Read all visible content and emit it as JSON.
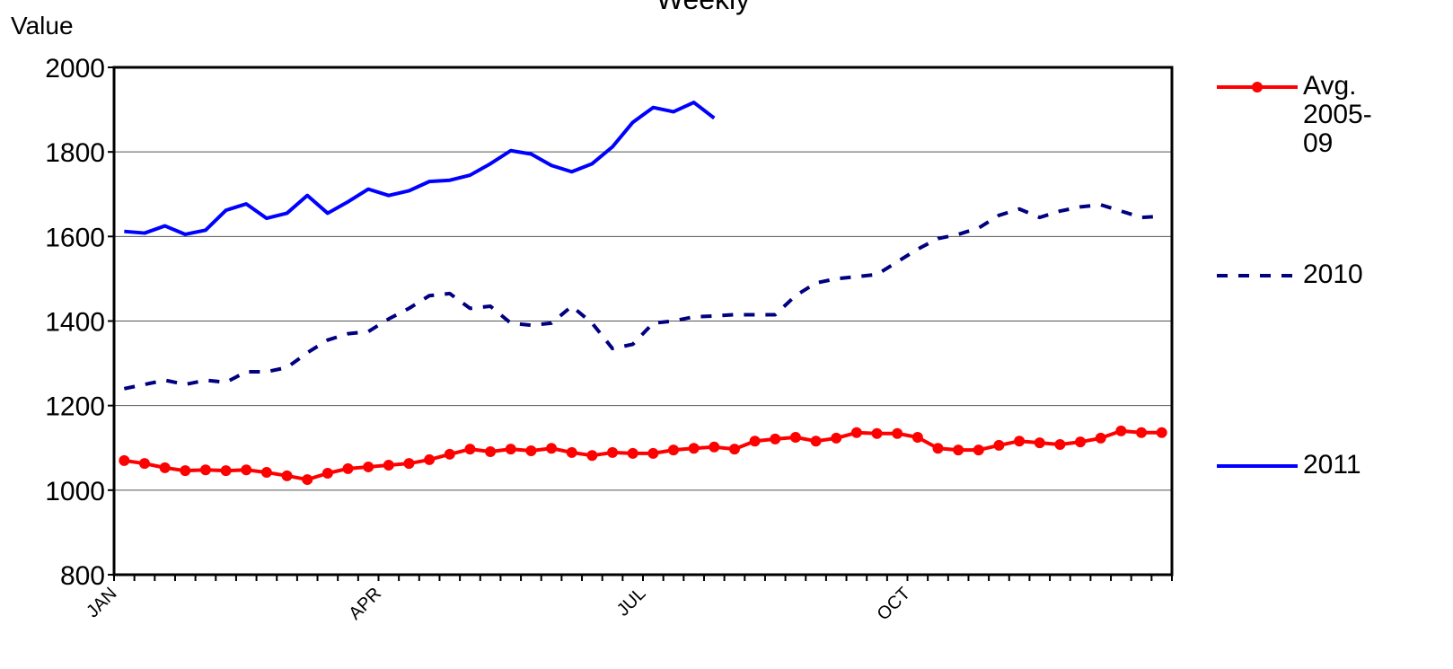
{
  "chart_data": {
    "type": "line",
    "title": "Weekly",
    "y_label": "Value",
    "categories": [
      "JAN",
      null,
      null,
      null,
      null,
      null,
      null,
      null,
      null,
      null,
      null,
      null,
      null,
      "APR",
      null,
      null,
      null,
      null,
      null,
      null,
      null,
      null,
      null,
      null,
      null,
      null,
      "JUL",
      null,
      null,
      null,
      null,
      null,
      null,
      null,
      null,
      null,
      null,
      null,
      null,
      "OCT",
      null,
      null,
      null,
      null,
      null,
      null,
      null,
      null,
      null,
      null,
      null,
      null
    ],
    "series": [
      {
        "name": "Avg. 2005-09",
        "color": "#ff0000",
        "marker": "circle",
        "dash": false,
        "values": [
          1070,
          1063,
          1053,
          1046,
          1048,
          1046,
          1048,
          1042,
          1034,
          1025,
          1040,
          1051,
          1055,
          1059,
          1063,
          1072,
          1085,
          1097,
          1091,
          1097,
          1093,
          1099,
          1089,
          1082,
          1089,
          1087,
          1087,
          1095,
          1099,
          1102,
          1097,
          1116,
          1121,
          1125,
          1116,
          1123,
          1136,
          1134,
          1134,
          1125,
          1099,
          1095,
          1095,
          1106,
          1116,
          1112,
          1108,
          1114,
          1123,
          1140,
          1136,
          1136
        ]
      },
      {
        "name": "2010",
        "color": "#000080",
        "marker": "none",
        "dash": true,
        "values": [
          1240,
          1250,
          1260,
          1250,
          1260,
          1255,
          1280,
          1280,
          1290,
          1325,
          1355,
          1370,
          1375,
          1405,
          1430,
          1460,
          1465,
          1430,
          1435,
          1395,
          1390,
          1395,
          1435,
          1395,
          1335,
          1345,
          1395,
          1400,
          1410,
          1412,
          1415,
          1415,
          1415,
          1460,
          1490,
          1500,
          1505,
          1510,
          1540,
          1570,
          1595,
          1605,
          1620,
          1650,
          1665,
          1645,
          1660,
          1670,
          1675,
          1660,
          1645,
          1648
        ]
      },
      {
        "name": "2011",
        "color": "#0000ff",
        "marker": "none",
        "dash": false,
        "values": [
          1612,
          1608,
          1625,
          1605,
          1615,
          1662,
          1677,
          1643,
          1655,
          1697,
          1655,
          1682,
          1712,
          1697,
          1708,
          1730,
          1733,
          1745,
          1772,
          1803,
          1795,
          1768,
          1753,
          1772,
          1812,
          1870,
          1905,
          1895,
          1917,
          1880,
          null,
          null,
          null,
          null,
          null,
          null,
          null,
          null,
          null,
          null,
          null,
          null,
          null,
          null,
          null,
          null,
          null,
          null,
          null,
          null,
          null,
          null
        ]
      }
    ],
    "ylim": [
      800,
      2000
    ],
    "yticks": [
      800,
      1000,
      1200,
      1400,
      1600,
      1800,
      2000
    ],
    "grid": true,
    "legend": "right"
  }
}
